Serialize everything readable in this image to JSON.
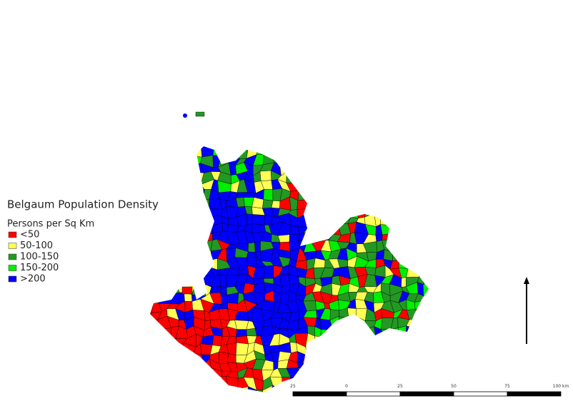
{
  "title": "Belgaum Population Density",
  "legend": {
    "title": "Persons per Sq Km",
    "items": [
      {
        "label": "<50",
        "color": "#ff0000"
      },
      {
        "label": "50-100",
        "color": "#ffff55"
      },
      {
        "label": "100-150",
        "color": "#229922"
      },
      {
        "label": "150-200",
        "color": "#00ee00"
      },
      {
        "label": ">200",
        "color": "#0000ff"
      }
    ]
  },
  "scale_bar": {
    "labels": [
      "25",
      "0",
      "25",
      "50",
      "75",
      "100 km"
    ]
  }
}
